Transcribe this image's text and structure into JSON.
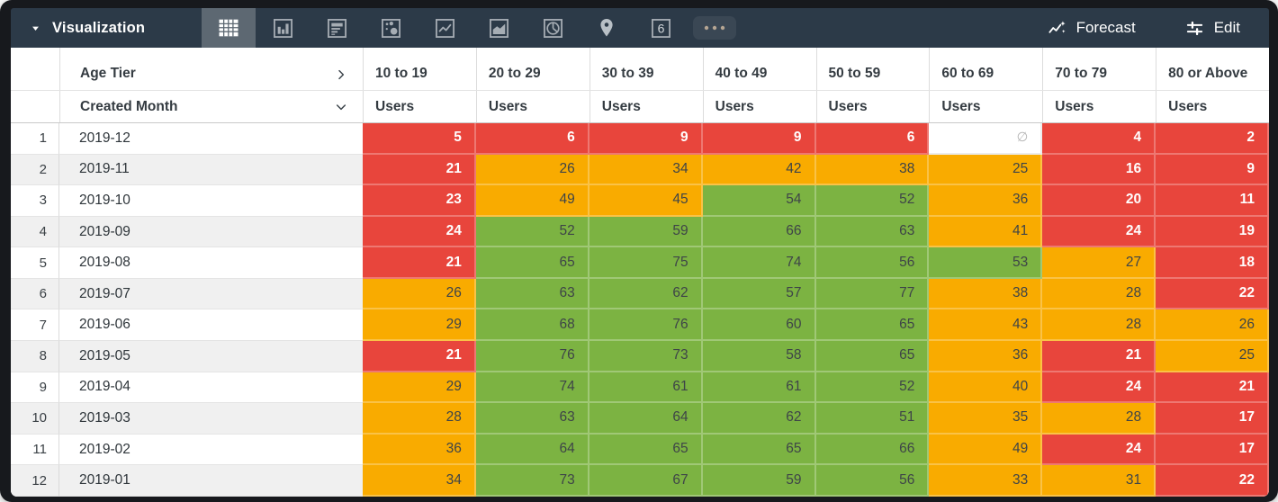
{
  "toolbar": {
    "title": "Visualization",
    "icons": [
      {
        "name": "table",
        "selected": true
      },
      {
        "name": "column-chart",
        "selected": false
      },
      {
        "name": "bar-chart",
        "selected": false
      },
      {
        "name": "scatter-chart",
        "selected": false
      },
      {
        "name": "line-chart",
        "selected": false
      },
      {
        "name": "area-chart",
        "selected": false
      },
      {
        "name": "pie-chart",
        "selected": false
      },
      {
        "name": "map-pin",
        "selected": false
      },
      {
        "name": "single-value",
        "selected": false
      },
      {
        "name": "more",
        "selected": false
      }
    ],
    "single_value_glyph": "6",
    "forecast_label": "Forecast",
    "edit_label": "Edit"
  },
  "table": {
    "pivot_field": "Age Tier",
    "row_field": "Created Month",
    "measure_label": "Users",
    "columns": [
      "10 to 19",
      "20 to 29",
      "30 to 39",
      "40 to 49",
      "50 to 59",
      "60 to 69",
      "70 to 79",
      "80 or Above"
    ],
    "null_symbol": "∅",
    "rows": [
      {
        "index": "1",
        "month": "2019-12",
        "values": [
          "5",
          "6",
          "9",
          "9",
          "6",
          null,
          "4",
          "2"
        ],
        "colors": [
          "red",
          "red",
          "red",
          "red",
          "red",
          "none",
          "red",
          "red"
        ]
      },
      {
        "index": "2",
        "month": "2019-11",
        "values": [
          "21",
          "26",
          "34",
          "42",
          "38",
          "25",
          "16",
          "9"
        ],
        "colors": [
          "red",
          "amber",
          "amber",
          "amber",
          "amber",
          "amber",
          "red",
          "red"
        ]
      },
      {
        "index": "3",
        "month": "2019-10",
        "values": [
          "23",
          "49",
          "45",
          "54",
          "52",
          "36",
          "20",
          "11"
        ],
        "colors": [
          "red",
          "amber",
          "amber",
          "green",
          "green",
          "amber",
          "red",
          "red"
        ]
      },
      {
        "index": "4",
        "month": "2019-09",
        "values": [
          "24",
          "52",
          "59",
          "66",
          "63",
          "41",
          "24",
          "19"
        ],
        "colors": [
          "red",
          "green",
          "green",
          "green",
          "green",
          "amber",
          "red",
          "red"
        ]
      },
      {
        "index": "5",
        "month": "2019-08",
        "values": [
          "21",
          "65",
          "75",
          "74",
          "56",
          "53",
          "27",
          "18"
        ],
        "colors": [
          "red",
          "green",
          "green",
          "green",
          "green",
          "green",
          "amber",
          "red"
        ]
      },
      {
        "index": "6",
        "month": "2019-07",
        "values": [
          "26",
          "63",
          "62",
          "57",
          "77",
          "38",
          "28",
          "22"
        ],
        "colors": [
          "amber",
          "green",
          "green",
          "green",
          "green",
          "amber",
          "amber",
          "red"
        ]
      },
      {
        "index": "7",
        "month": "2019-06",
        "values": [
          "29",
          "68",
          "76",
          "60",
          "65",
          "43",
          "28",
          "26"
        ],
        "colors": [
          "amber",
          "green",
          "green",
          "green",
          "green",
          "amber",
          "amber",
          "amber"
        ]
      },
      {
        "index": "8",
        "month": "2019-05",
        "values": [
          "21",
          "76",
          "73",
          "58",
          "65",
          "36",
          "21",
          "25"
        ],
        "colors": [
          "red",
          "green",
          "green",
          "green",
          "green",
          "amber",
          "red",
          "amber"
        ]
      },
      {
        "index": "9",
        "month": "2019-04",
        "values": [
          "29",
          "74",
          "61",
          "61",
          "52",
          "40",
          "24",
          "21"
        ],
        "colors": [
          "amber",
          "green",
          "green",
          "green",
          "green",
          "amber",
          "red",
          "red"
        ]
      },
      {
        "index": "10",
        "month": "2019-03",
        "values": [
          "28",
          "63",
          "64",
          "62",
          "51",
          "35",
          "28",
          "17"
        ],
        "colors": [
          "amber",
          "green",
          "green",
          "green",
          "green",
          "amber",
          "amber",
          "red"
        ]
      },
      {
        "index": "11",
        "month": "2019-02",
        "values": [
          "36",
          "64",
          "65",
          "65",
          "66",
          "49",
          "24",
          "17"
        ],
        "colors": [
          "amber",
          "green",
          "green",
          "green",
          "green",
          "amber",
          "red",
          "red"
        ]
      },
      {
        "index": "12",
        "month": "2019-01",
        "values": [
          "34",
          "73",
          "67",
          "59",
          "56",
          "33",
          "31",
          "22"
        ],
        "colors": [
          "amber",
          "green",
          "green",
          "green",
          "green",
          "amber",
          "amber",
          "red"
        ]
      }
    ]
  },
  "colors": {
    "red": "#e8453c",
    "amber": "#f9ab00",
    "green": "#7cb342",
    "none": "#ffffff",
    "toolbar_bg": "#2c3a48",
    "selected_icon_bg": "#5d6872"
  }
}
